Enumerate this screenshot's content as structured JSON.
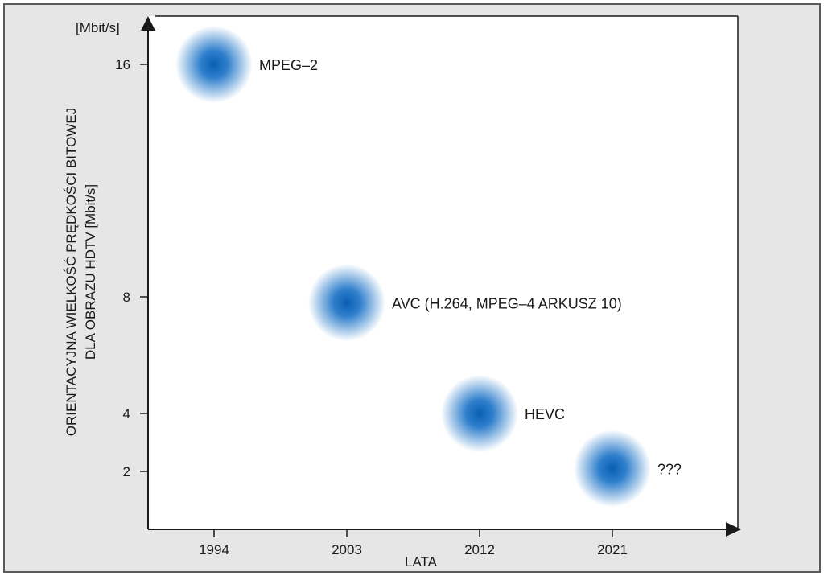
{
  "chart_data": {
    "type": "scatter",
    "ylabel_line1": "ORIENTACYJNA WIELKOŚĆ PRĘDKOŚCI BITOWEJ",
    "ylabel_line2": "DLA OBRAZU HDTV [Mbit/s]",
    "yunit": "[Mbit/s]",
    "xlabel": "LATA",
    "x_ticks": [
      "1994",
      "2003",
      "2012",
      "2021"
    ],
    "y_ticks": [
      16,
      8,
      4,
      2
    ],
    "points": [
      {
        "x": "1994",
        "y": 16,
        "label": "MPEG–2"
      },
      {
        "x": "2003",
        "y": 7.8,
        "label": "AVC (H.264, MPEG–4 ARKUSZ 10)"
      },
      {
        "x": "2012",
        "y": 4,
        "label": "HEVC"
      },
      {
        "x": "2021",
        "y": 2.1,
        "label": "???"
      }
    ],
    "grid": false,
    "legend": "none",
    "colors": {
      "background": "#e6e6e6",
      "plot_area": "#ffffff",
      "bubble_center": "#0a5fb4",
      "bubble_edge": "#ffffff",
      "axis": "#1a1a1a"
    }
  }
}
